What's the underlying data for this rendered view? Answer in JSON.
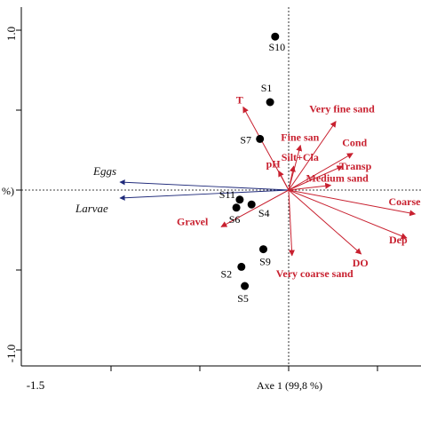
{
  "chart_data": {
    "type": "scatter",
    "title": "",
    "xlabel": "Axe 1 (99,8 %)",
    "ylabel_fragment": "%)",
    "xlim": [
      -1.5,
      0.5
    ],
    "ylim": [
      -1.0,
      1.0
    ],
    "x_ticks": [
      {
        "value": -1.5,
        "label": "-1.5"
      }
    ],
    "y_ticks": [
      {
        "value": 1.0,
        "label": "1.0"
      },
      {
        "value": -1.0,
        "label": "-1.0"
      }
    ],
    "colors": {
      "sites": "#000000",
      "environment": "#c8202f",
      "species": "#1f2a7a",
      "axes": "#000000"
    },
    "sites": [
      {
        "label": "S10",
        "x": -0.08,
        "y": 0.96
      },
      {
        "label": "S1",
        "x": -0.11,
        "y": 0.55
      },
      {
        "label": "S7",
        "x": -0.17,
        "y": 0.32
      },
      {
        "label": "S11",
        "x": -0.29,
        "y": -0.06
      },
      {
        "label": "S6",
        "x": -0.31,
        "y": -0.11
      },
      {
        "label": "S4",
        "x": -0.22,
        "y": -0.09
      },
      {
        "label": "S9",
        "x": -0.15,
        "y": -0.37
      },
      {
        "label": "S2",
        "x": -0.28,
        "y": -0.48
      },
      {
        "label": "S5",
        "x": -0.26,
        "y": -0.6
      }
    ],
    "environment": [
      {
        "label": "T",
        "x": -0.27,
        "y": 0.52
      },
      {
        "label": "Very fine sand",
        "x": 0.28,
        "y": 0.43
      },
      {
        "label": "Fine san",
        "x": 0.07,
        "y": 0.28
      },
      {
        "label": "Cond",
        "x": 0.38,
        "y": 0.23
      },
      {
        "label": "Transp",
        "x": 0.32,
        "y": 0.15
      },
      {
        "label": "Silt+Cla",
        "x": 0.03,
        "y": 0.15
      },
      {
        "label": "pH",
        "x": -0.06,
        "y": 0.12
      },
      {
        "label": "Medium sand",
        "x": 0.25,
        "y": 0.03
      },
      {
        "label": "Coarse",
        "x": 0.75,
        "y": -0.15
      },
      {
        "label": "Dep",
        "x": 0.7,
        "y": -0.3
      },
      {
        "label": "DO",
        "x": 0.43,
        "y": -0.4
      },
      {
        "label": "Very coarse sand",
        "x": 0.02,
        "y": -0.41
      },
      {
        "label": "Gravel",
        "x": -0.4,
        "y": -0.23
      }
    ],
    "species": [
      {
        "label": "Eggs",
        "x": -1.0,
        "y": 0.05
      },
      {
        "label": "Larvae",
        "x": -1.0,
        "y": -0.05
      }
    ]
  }
}
